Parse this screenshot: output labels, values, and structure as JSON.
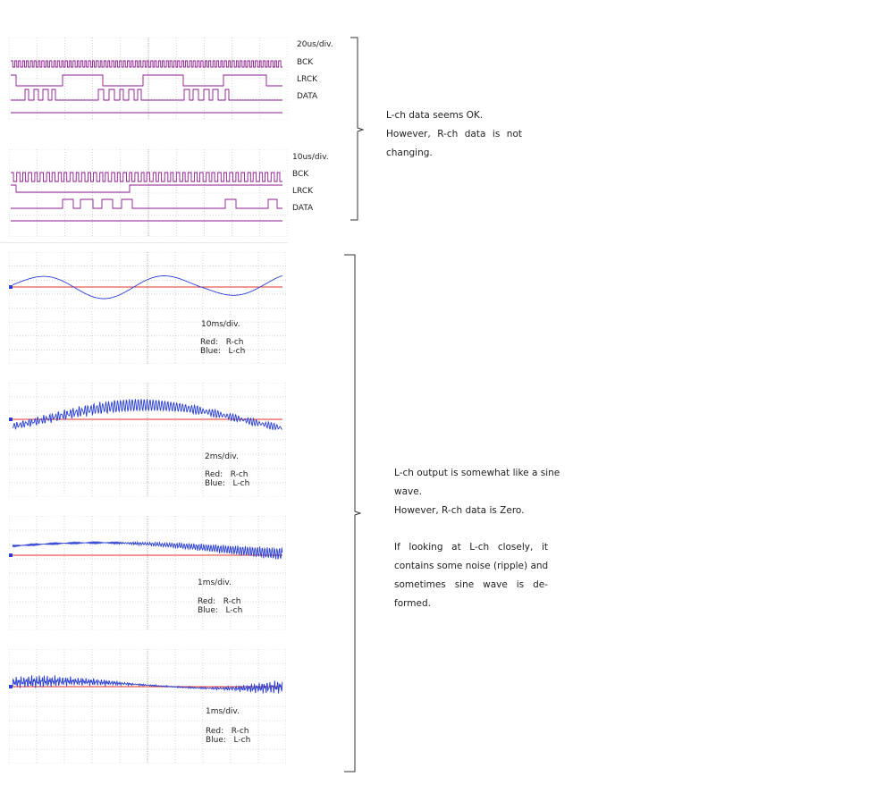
{
  "digital_captures": [
    {
      "timebase": "20us/div.",
      "signals": [
        "BCK",
        "LRCK",
        "DATA"
      ]
    },
    {
      "timebase": "10us/div.",
      "signals": [
        "BCK",
        "LRCK",
        "DATA"
      ]
    }
  ],
  "digital_note": {
    "lines": [
      "L-ch data seems OK.",
      "However, R-ch data is not",
      "changing."
    ]
  },
  "analog_captures": [
    {
      "timebase": "10ms/div.",
      "legend_red": "Red:   R-ch",
      "legend_blue": "Blue:   L-ch"
    },
    {
      "timebase": "2ms/div.",
      "legend_red": "Red:   R-ch",
      "legend_blue": "Blue:   L-ch"
    },
    {
      "timebase": "1ms/div.",
      "legend_red": "Red:   R-ch",
      "legend_blue": "Blue:   L-ch"
    },
    {
      "timebase": "1ms/div.",
      "legend_red": "Red:   R-ch",
      "legend_blue": "Blue:   L-ch"
    }
  ],
  "analog_note": {
    "lines": [
      "L-ch output is somewhat like a sine",
      "wave.",
      "However, R-ch data is Zero.",
      "",
      "If looking at L-ch closely, it",
      "contains some noise (ripple) and",
      "sometimes sine wave is de-",
      "formed."
    ]
  },
  "colors": {
    "digital_trace": "#8b1a8b",
    "l_ch": "#2a3fd0",
    "r_ch": "#e0302a",
    "grid": "#b8b8b8"
  }
}
